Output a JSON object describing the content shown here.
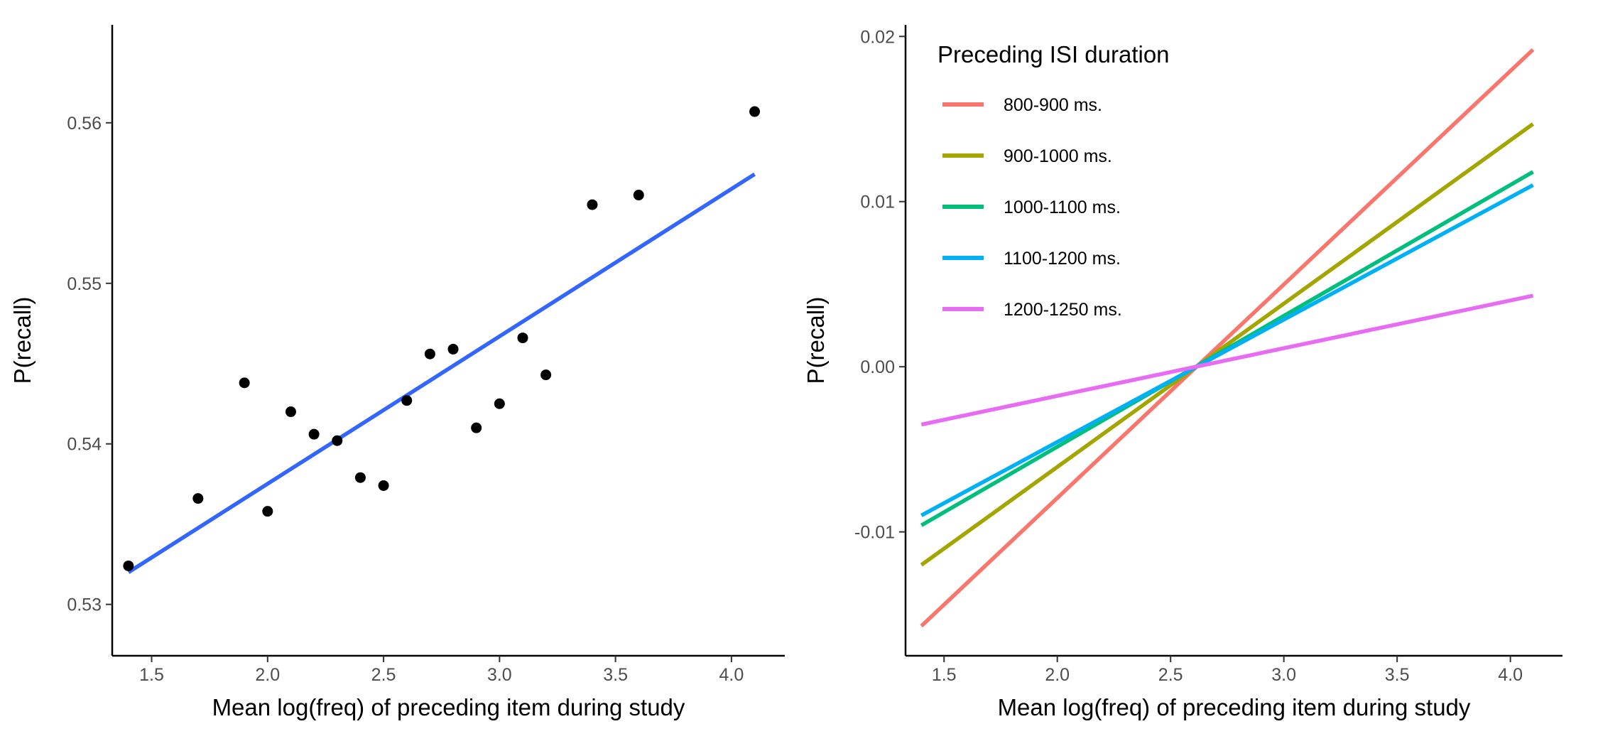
{
  "chart_data": [
    {
      "type": "scatter",
      "xlabel": "Mean log(freq) of preceding item during study",
      "ylabel": "P(recall)",
      "xlim": [
        1.33,
        4.23
      ],
      "ylim": [
        0.5268,
        0.5661
      ],
      "x_ticks": [
        1.5,
        2.0,
        2.5,
        3.0,
        3.5,
        4.0
      ],
      "x_tick_labels": [
        "1.5",
        "2.0",
        "2.5",
        "3.0",
        "3.5",
        "4.0"
      ],
      "y_ticks": [
        0.53,
        0.54,
        0.55,
        0.56
      ],
      "y_tick_labels": [
        "0.53",
        "0.54",
        "0.55",
        "0.56"
      ],
      "grid": false,
      "point_color": "#000000",
      "line_color": "#3366FF",
      "points": [
        {
          "x": 1.4,
          "y": 0.5324
        },
        {
          "x": 1.7,
          "y": 0.5366
        },
        {
          "x": 1.9,
          "y": 0.5438
        },
        {
          "x": 2.0,
          "y": 0.5358
        },
        {
          "x": 2.1,
          "y": 0.542
        },
        {
          "x": 2.2,
          "y": 0.5406
        },
        {
          "x": 2.3,
          "y": 0.5402
        },
        {
          "x": 2.4,
          "y": 0.5379
        },
        {
          "x": 2.5,
          "y": 0.5374
        },
        {
          "x": 2.6,
          "y": 0.5427
        },
        {
          "x": 2.7,
          "y": 0.5456
        },
        {
          "x": 2.8,
          "y": 0.5459
        },
        {
          "x": 2.9,
          "y": 0.541
        },
        {
          "x": 3.0,
          "y": 0.5425
        },
        {
          "x": 3.1,
          "y": 0.5466
        },
        {
          "x": 3.2,
          "y": 0.5443
        },
        {
          "x": 3.4,
          "y": 0.5549
        },
        {
          "x": 3.6,
          "y": 0.5555
        },
        {
          "x": 4.1,
          "y": 0.5607
        }
      ],
      "fit_line": {
        "x": [
          1.4,
          4.1
        ],
        "y": [
          0.532,
          0.5568
        ]
      }
    },
    {
      "type": "line",
      "xlabel": "Mean log(freq) of preceding item during study",
      "ylabel": "P(recall)",
      "xlim": [
        1.33,
        4.23
      ],
      "ylim": [
        -0.0175,
        0.0207
      ],
      "x_ticks": [
        1.5,
        2.0,
        2.5,
        3.0,
        3.5,
        4.0
      ],
      "x_tick_labels": [
        "1.5",
        "2.0",
        "2.5",
        "3.0",
        "3.5",
        "4.0"
      ],
      "y_ticks": [
        -0.01,
        0.0,
        0.01,
        0.02
      ],
      "y_tick_labels": [
        "-0.01",
        "0.00",
        "0.01",
        "0.02"
      ],
      "grid": false,
      "legend_title": "Preceding ISI duration",
      "legend_position": "top-left",
      "series": [
        {
          "name": "800-900 ms.",
          "color": "#F8766D",
          "x": [
            1.4,
            4.1
          ],
          "y": [
            -0.0157,
            0.0192
          ]
        },
        {
          "name": "900-1000 ms.",
          "color": "#A3A500",
          "x": [
            1.4,
            4.1
          ],
          "y": [
            -0.012,
            0.0147
          ]
        },
        {
          "name": "1000-1100 ms.",
          "color": "#00BF7D",
          "x": [
            1.4,
            4.1
          ],
          "y": [
            -0.0096,
            0.0118
          ]
        },
        {
          "name": "1100-1200 ms.",
          "color": "#00B0F6",
          "x": [
            1.4,
            4.1
          ],
          "y": [
            -0.009,
            0.011
          ]
        },
        {
          "name": "1200-1250 ms.",
          "color": "#E76BF3",
          "x": [
            1.4,
            4.1
          ],
          "y": [
            -0.0035,
            0.0043
          ]
        }
      ]
    }
  ]
}
